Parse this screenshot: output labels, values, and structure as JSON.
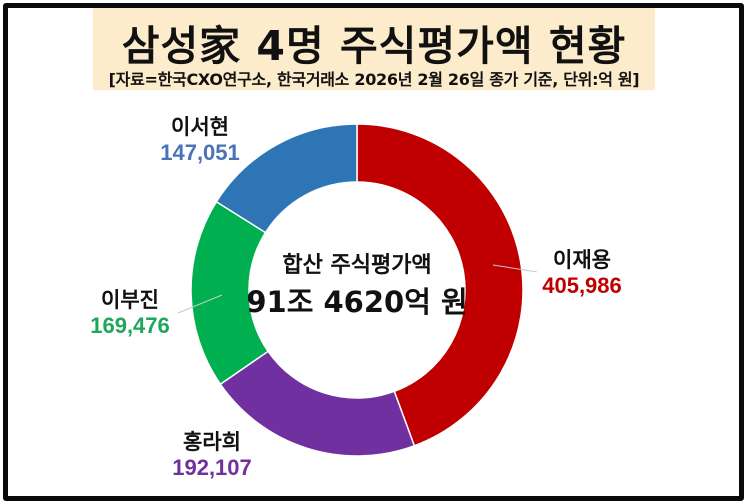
{
  "header": {
    "title": "삼성家 4명 주식평가액 현황",
    "subtitle": "[자료=한국CXO연구소, 한국거래소 2026년 2월 26일 종가 기준, 단위:억 원]"
  },
  "center_label": {
    "line1": "합산 주식평가액",
    "line2": "91조 4620억 원"
  },
  "labels": [
    {
      "name": "이재용",
      "value": "405,986",
      "color": "#c00000"
    },
    {
      "name": "홍라희",
      "value": "192,107",
      "color": "#7030a0"
    },
    {
      "name": "이부진",
      "value": "169,476",
      "color": "#1ea65a"
    },
    {
      "name": "이서현",
      "value": "147,051",
      "color": "#4a72b8"
    }
  ],
  "chart_data": {
    "type": "pie",
    "subtype": "donut",
    "title": "삼성家 4명 주식평가액 현황",
    "subtitle": "[자료=한국CXO연구소, 한국거래소 2026년 2월 26일 종가 기준, 단위:억 원]",
    "unit": "억 원",
    "categories": [
      "이재용",
      "홍라희",
      "이부진",
      "이서현"
    ],
    "values": [
      405986,
      192107,
      169476,
      147051
    ],
    "colors": [
      "#c00000",
      "#7030a0",
      "#00b050",
      "#2e75b6"
    ],
    "total": 914620,
    "center_text": [
      "합산 주식평가액",
      "91조 4620억 원"
    ],
    "start_angle": "12 o'clock, clockwise",
    "legend": "none (direct labels)"
  }
}
